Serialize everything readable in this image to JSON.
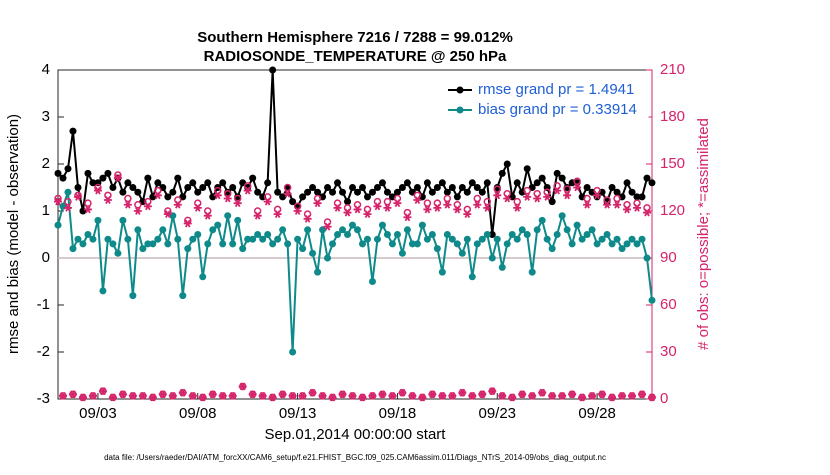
{
  "chart_data": {
    "type": "line",
    "title": [
      "Southern Hemisphere 7216 / 7288 = 99.012%",
      "RADIOSONDE_TEMPERATURE @ 250 hPa"
    ],
    "x_label": "Sep.01,2014 00:00:00 start",
    "y_label": "rmse and bias (model - observation)",
    "y2_label": "# of obs: o=possible; *=assimilated",
    "footnote": "data file: /Users/raeder/DAI/ATM_forcXX/CAM6_setup/f.e21.FHIST_BGC.f09_025.CAM6assim.011/Diags_NTrS_2014-09/obs_diag_output.nc",
    "xlim": [
      0,
      29.75
    ],
    "xticks": [
      {
        "value": 2,
        "label": "09/03"
      },
      {
        "value": 7,
        "label": "09/08"
      },
      {
        "value": 12,
        "label": "09/13"
      },
      {
        "value": 17,
        "label": "09/18"
      },
      {
        "value": 22,
        "label": "09/23"
      },
      {
        "value": 27,
        "label": "09/28"
      }
    ],
    "ylim": [
      -3,
      4
    ],
    "yticks": [
      -3,
      -2,
      -1,
      0,
      1,
      2,
      3,
      4
    ],
    "y2lim": [
      0,
      210
    ],
    "y2ticks": [
      0,
      30,
      60,
      90,
      120,
      150,
      180,
      210
    ],
    "y2_color": "#d6246b",
    "legend_text_color": "#1f5fd6",
    "legend": "upper right",
    "x": [
      0,
      0.25,
      0.5,
      0.75,
      1,
      1.25,
      1.5,
      1.75,
      2,
      2.25,
      2.5,
      2.75,
      3,
      3.25,
      3.5,
      3.75,
      4,
      4.25,
      4.5,
      4.75,
      5,
      5.25,
      5.5,
      5.75,
      6,
      6.25,
      6.5,
      6.75,
      7,
      7.25,
      7.5,
      7.75,
      8,
      8.25,
      8.5,
      8.75,
      9,
      9.25,
      9.5,
      9.75,
      10,
      10.25,
      10.5,
      10.75,
      11,
      11.25,
      11.5,
      11.75,
      12,
      12.25,
      12.5,
      12.75,
      13,
      13.25,
      13.5,
      13.75,
      14,
      14.25,
      14.5,
      14.75,
      15,
      15.25,
      15.5,
      15.75,
      16,
      16.25,
      16.5,
      16.75,
      17,
      17.25,
      17.5,
      17.75,
      18,
      18.25,
      18.5,
      18.75,
      19,
      19.25,
      19.5,
      19.75,
      20,
      20.25,
      20.5,
      20.75,
      21,
      21.25,
      21.5,
      21.75,
      22,
      22.25,
      22.5,
      22.75,
      23,
      23.25,
      23.5,
      23.75,
      24,
      24.25,
      24.5,
      24.75,
      25,
      25.25,
      25.5,
      25.75,
      26,
      26.25,
      26.5,
      26.75,
      27,
      27.25,
      27.5,
      27.75,
      28,
      28.25,
      28.5,
      28.75,
      29,
      29.25,
      29.5,
      29.75
    ],
    "series": [
      {
        "name": "rmse grand pr = 1.4941",
        "color": "#000000",
        "marker": "dot",
        "values": [
          1.8,
          1.7,
          1.9,
          2.7,
          1.5,
          1.0,
          1.8,
          1.6,
          1.6,
          1.7,
          1.8,
          1.5,
          1.7,
          1.4,
          1.6,
          1.5,
          1.4,
          1.2,
          1.7,
          1.3,
          1.6,
          1.5,
          1.3,
          1.4,
          1.7,
          1.3,
          1.5,
          1.6,
          1.4,
          1.5,
          1.6,
          1.3,
          1.5,
          1.6,
          1.4,
          1.5,
          1.3,
          1.6,
          1.5,
          1.7,
          1.4,
          1.3,
          1.6,
          4.0,
          1.4,
          1.3,
          1.5,
          1.2,
          1.1,
          1.3,
          1.4,
          1.5,
          1.4,
          1.3,
          1.5,
          1.4,
          1.6,
          1.4,
          1.2,
          1.5,
          1.4,
          1.5,
          1.3,
          1.4,
          1.5,
          1.6,
          1.4,
          1.3,
          1.4,
          1.5,
          1.6,
          1.4,
          1.5,
          1.3,
          1.6,
          1.4,
          1.5,
          1.6,
          1.4,
          1.5,
          1.3,
          1.5,
          1.4,
          1.6,
          1.5,
          1.4,
          1.6,
          0.5,
          1.5,
          1.8,
          2.0,
          1.3,
          1.6,
          1.4,
          1.9,
          1.5,
          1.6,
          1.7,
          1.5,
          1.2,
          1.8,
          1.7,
          1.5,
          1.6,
          1.6,
          1.3,
          1.5,
          1.4,
          1.3,
          1.4,
          1.2,
          1.5,
          1.4,
          1.3,
          1.6,
          1.4,
          1.3,
          1.3,
          1.7,
          1.6
        ]
      },
      {
        "name": "bias grand pr = 0.33914",
        "color": "#0f8a8a",
        "marker": "dot",
        "values": [
          0.7,
          1.1,
          1.4,
          0.2,
          0.4,
          0.3,
          0.5,
          0.4,
          0.8,
          -0.7,
          0.4,
          0.3,
          0.1,
          0.8,
          0.4,
          -0.8,
          0.6,
          0.2,
          0.3,
          0.3,
          0.4,
          0.6,
          0.3,
          0.9,
          0.4,
          -0.8,
          0.2,
          0.4,
          0.5,
          -0.4,
          0.3,
          0.6,
          0.7,
          0.3,
          0.9,
          0.3,
          0.8,
          0.2,
          0.4,
          0.4,
          0.5,
          0.4,
          0.5,
          0.3,
          0.4,
          0.6,
          0.3,
          -2.0,
          0.4,
          0.2,
          0.6,
          0.1,
          -0.3,
          0.6,
          0.0,
          0.3,
          0.5,
          0.6,
          0.5,
          0.7,
          0.6,
          0.3,
          0.4,
          -0.5,
          0.4,
          0.7,
          0.5,
          0.3,
          0.5,
          0.1,
          0.6,
          0.3,
          0.3,
          0.7,
          0.4,
          0.5,
          0.2,
          -0.3,
          0.5,
          0.4,
          0.3,
          0.1,
          0.4,
          -0.4,
          0.3,
          0.4,
          0.5,
          0.0,
          0.4,
          -0.2,
          0.3,
          0.5,
          0.4,
          0.6,
          0.5,
          -0.3,
          0.6,
          0.8,
          0.4,
          0.2,
          0.5,
          0.9,
          0.6,
          0.3,
          0.7,
          0.4,
          0.5,
          0.6,
          0.3,
          0.4,
          0.5,
          0.3,
          0.4,
          0.2,
          0.3,
          0.4,
          0.3,
          0.4,
          0.0,
          -0.9
        ]
      },
      {
        "color": "#d6246b",
        "marker": "circle",
        "axis": "y2",
        "values": [
          128,
          2,
          126,
          3,
          130,
          1,
          125,
          2,
          135,
          5,
          130,
          1,
          143,
          3,
          128,
          2,
          124,
          2,
          126,
          1,
          133,
          3,
          120,
          2,
          127,
          4,
          114,
          2,
          125,
          1,
          120,
          3,
          133,
          2,
          131,
          2,
          128,
          8,
          136,
          3,
          120,
          2,
          129,
          1,
          121,
          3,
          135,
          2,
          123,
          2,
          118,
          4,
          128,
          2,
          113,
          1,
          125,
          3,
          122,
          2,
          124,
          1,
          121,
          2,
          126,
          3,
          126,
          2,
          128,
          4,
          119,
          2,
          130,
          1,
          125,
          3,
          125,
          2,
          128,
          2,
          124,
          4,
          121,
          2,
          128,
          3,
          126,
          5,
          134,
          2,
          131,
          1,
          126,
          3,
          133,
          2,
          131,
          4,
          132,
          2,
          136,
          2,
          134,
          3,
          139,
          1,
          128,
          2,
          133,
          3,
          127,
          1,
          128,
          2,
          124,
          2,
          125,
          3,
          122,
          1
        ]
      },
      {
        "color": "#d6246b",
        "marker": "star",
        "axis": "y2",
        "values": [
          126,
          2,
          122,
          3,
          129,
          1,
          121,
          2,
          133,
          5,
          127,
          1,
          141,
          3,
          124,
          2,
          120,
          2,
          123,
          1,
          130,
          3,
          118,
          2,
          124,
          4,
          112,
          2,
          122,
          1,
          117,
          3,
          130,
          2,
          128,
          2,
          125,
          8,
          133,
          3,
          117,
          2,
          126,
          1,
          118,
          3,
          131,
          2,
          120,
          2,
          115,
          4,
          125,
          2,
          110,
          1,
          122,
          3,
          119,
          2,
          121,
          1,
          118,
          2,
          123,
          3,
          122,
          2,
          125,
          4,
          116,
          2,
          127,
          1,
          121,
          3,
          122,
          2,
          124,
          2,
          121,
          4,
          118,
          2,
          124,
          3,
          122,
          5,
          130,
          2,
          128,
          1,
          122,
          3,
          129,
          2,
          128,
          4,
          129,
          2,
          133,
          2,
          130,
          3,
          135,
          1,
          124,
          2,
          130,
          3,
          124,
          1,
          124,
          2,
          121,
          2,
          122,
          3,
          119,
          1
        ]
      }
    ]
  }
}
